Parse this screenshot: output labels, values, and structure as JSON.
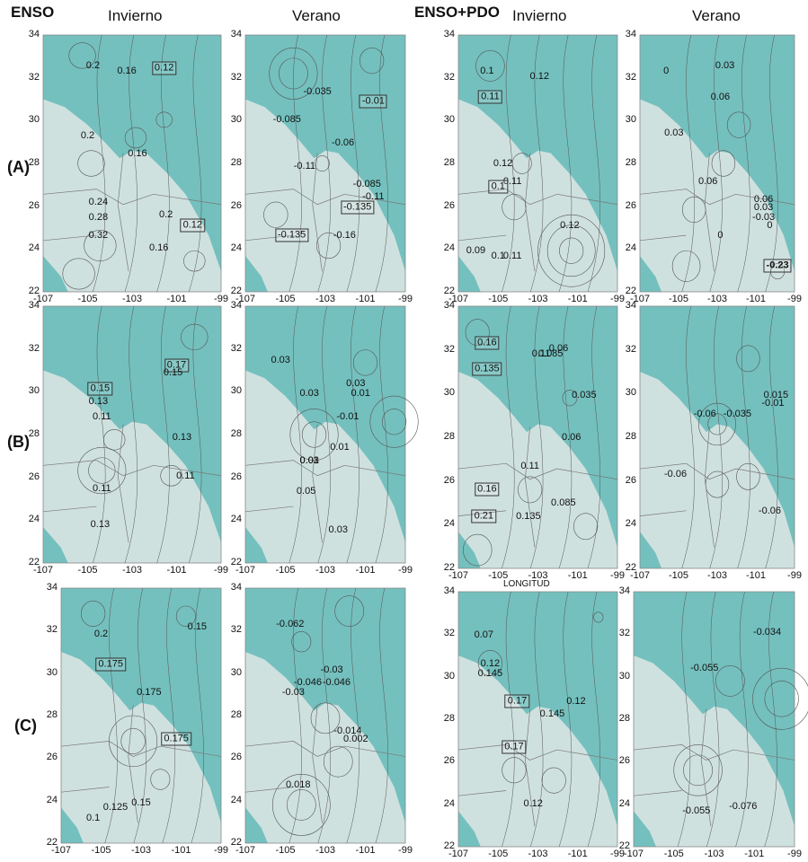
{
  "headers": {
    "enso": "ENSO",
    "enso_invierno": "Invierno",
    "enso_verano": "Verano",
    "ensopdo": "ENSO+PDO",
    "ensopdo_invierno": "Invierno",
    "ensopdo_verano": "Verano"
  },
  "row_labels": [
    "(A)",
    "(B)",
    "(C)"
  ],
  "axes": {
    "y_ticks": [
      "34",
      "32",
      "30",
      "28",
      "26",
      "24",
      "22"
    ],
    "x_ticks": [
      "-107",
      "-105",
      "-103",
      "-101",
      "-99"
    ]
  },
  "longitude_label": "LONGITUD",
  "colors": {
    "sea": "#74c0be",
    "land": "#cfe1df",
    "contour": "#555555"
  },
  "panels": [
    {
      "id": "A-enso-invierno",
      "labels": [
        {
          "t": "0.2"
        },
        {
          "t": "0.16"
        },
        {
          "t": "0.12",
          "box": true
        },
        {
          "t": "0.2"
        },
        {
          "t": "0.16"
        },
        {
          "t": "0.24"
        },
        {
          "t": "0.28"
        },
        {
          "t": "0.32"
        },
        {
          "t": "0.2"
        },
        {
          "t": "0.12",
          "box": true
        },
        {
          "t": "0.16"
        }
      ]
    },
    {
      "id": "A-enso-verano",
      "labels": [
        {
          "t": "-0.035"
        },
        {
          "t": "-0.085"
        },
        {
          "t": "-0.01",
          "box": true
        },
        {
          "t": "-0.06"
        },
        {
          "t": "-0.11"
        },
        {
          "t": "-0.085"
        },
        {
          "t": "-0.11"
        },
        {
          "t": "-0.135",
          "box": true
        },
        {
          "t": "-0.135",
          "box": true
        },
        {
          "t": "-0.16"
        }
      ]
    },
    {
      "id": "A-pdo-invierno",
      "labels": [
        {
          "t": "0.1"
        },
        {
          "t": "0.11",
          "box": true
        },
        {
          "t": "0.12"
        },
        {
          "t": "0.12"
        },
        {
          "t": "0.11"
        },
        {
          "t": "0.1",
          "box": true
        },
        {
          "t": "0.12"
        },
        {
          "t": "0.09"
        },
        {
          "t": "0.1"
        },
        {
          "t": "0.11"
        }
      ]
    },
    {
      "id": "A-pdo-verano",
      "labels": [
        {
          "t": "0"
        },
        {
          "t": "0.03"
        },
        {
          "t": "0.06"
        },
        {
          "t": "0.03"
        },
        {
          "t": "0.06"
        },
        {
          "t": "0.06"
        },
        {
          "t": "0.03"
        },
        {
          "t": "0"
        },
        {
          "t": "-0.03"
        },
        {
          "t": "0"
        },
        {
          "t": "-0.23",
          "box": true,
          "bold": true
        }
      ]
    },
    {
      "id": "B-enso-invierno",
      "labels": [
        {
          "t": "0.17",
          "box": true
        },
        {
          "t": "0.15"
        },
        {
          "t": "0.15",
          "box": true
        },
        {
          "t": "0.13"
        },
        {
          "t": "0.11"
        },
        {
          "t": "0.13"
        },
        {
          "t": "0.11"
        },
        {
          "t": "0.11"
        },
        {
          "t": "0.13"
        }
      ]
    },
    {
      "id": "B-enso-verano",
      "labels": [
        {
          "t": "0.03"
        },
        {
          "t": "0.03"
        },
        {
          "t": "0.03"
        },
        {
          "t": "0.01"
        },
        {
          "t": "-0.01"
        },
        {
          "t": "0.01"
        },
        {
          "t": "0.03"
        },
        {
          "t": "0.01"
        },
        {
          "t": "0.05"
        },
        {
          "t": "0.03"
        }
      ]
    },
    {
      "id": "B-pdo-invierno",
      "labels": [
        {
          "t": "0.16",
          "box": true
        },
        {
          "t": "0.135",
          "box": true
        },
        {
          "t": "0.11"
        },
        {
          "t": "0.085"
        },
        {
          "t": "0.06"
        },
        {
          "t": "0.035"
        },
        {
          "t": "0.06"
        },
        {
          "t": "0.11"
        },
        {
          "t": "0.16",
          "box": true
        },
        {
          "t": "0.135"
        },
        {
          "t": "0.085"
        },
        {
          "t": "0.21",
          "box": true
        }
      ]
    },
    {
      "id": "B-pdo-verano",
      "labels": [
        {
          "t": "0.015"
        },
        {
          "t": "-0.06"
        },
        {
          "t": "-0.035"
        },
        {
          "t": "-0.01"
        },
        {
          "t": "-0.06"
        },
        {
          "t": "-0.06"
        }
      ]
    },
    {
      "id": "C-enso-invierno",
      "labels": [
        {
          "t": "0.2"
        },
        {
          "t": "0.175",
          "box": true
        },
        {
          "t": "0.15"
        },
        {
          "t": "0.175"
        },
        {
          "t": "0.175",
          "box": true
        },
        {
          "t": "0.1"
        },
        {
          "t": "0.125"
        },
        {
          "t": "0.15"
        }
      ]
    },
    {
      "id": "C-enso-verano",
      "labels": [
        {
          "t": "-0.062"
        },
        {
          "t": "-0.03"
        },
        {
          "t": "-0.046"
        },
        {
          "t": "-0.046"
        },
        {
          "t": "-0.03"
        },
        {
          "t": "-0.014"
        },
        {
          "t": "0.002"
        },
        {
          "t": "0.018"
        }
      ]
    },
    {
      "id": "C-pdo-invierno",
      "labels": [
        {
          "t": "0.07"
        },
        {
          "t": "0.12"
        },
        {
          "t": "0.145"
        },
        {
          "t": "0.17",
          "box": true
        },
        {
          "t": "0.145"
        },
        {
          "t": "0.12"
        },
        {
          "t": "0.17",
          "box": true
        },
        {
          "t": "0.12"
        }
      ]
    },
    {
      "id": "C-pdo-verano",
      "labels": [
        {
          "t": "-0.034"
        },
        {
          "t": "-0.055"
        },
        {
          "t": "-0.055"
        },
        {
          "t": "-0.076"
        }
      ]
    }
  ]
}
